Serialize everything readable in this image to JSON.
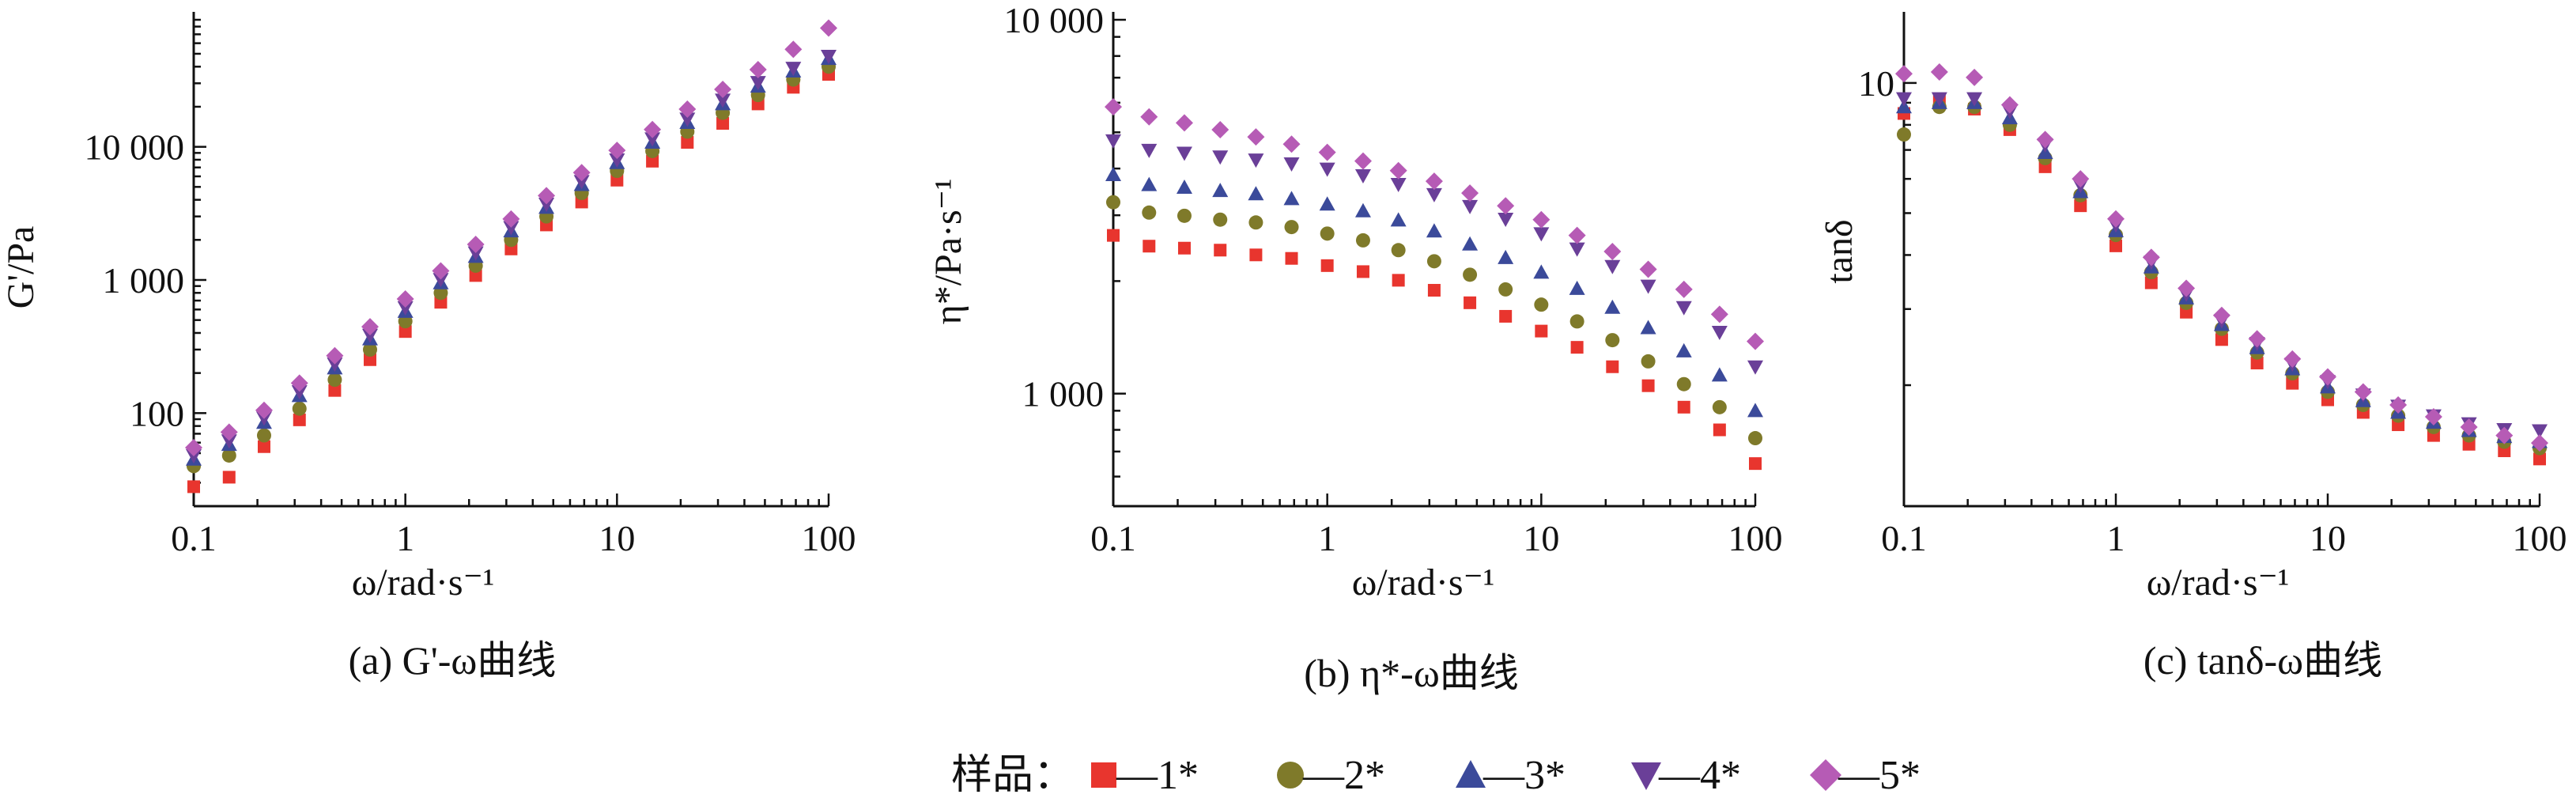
{
  "legend": {
    "title": "样品：",
    "items": [
      {
        "label": "—1*",
        "color": "#e8352e",
        "marker": "square"
      },
      {
        "label": "—2*",
        "color": "#7f7a2a",
        "marker": "circle"
      },
      {
        "label": "—3*",
        "color": "#3b4a9a",
        "marker": "triangle-up"
      },
      {
        "label": "—4*",
        "color": "#6a3f98",
        "marker": "triangle-down"
      },
      {
        "label": "—5*",
        "color": "#b65bb5",
        "marker": "diamond"
      }
    ]
  },
  "chart_data": [
    {
      "type": "scatter",
      "caption": "(a) G'-ω曲线",
      "xlabel": "ω/rad·s⁻¹",
      "ylabel": "G'/Pa",
      "xscale": "log",
      "yscale": "log",
      "xlim": [
        0.1,
        100
      ],
      "ylim": [
        20,
        90000
      ],
      "xticks": [
        {
          "v": 0.1,
          "label": "0.1"
        },
        {
          "v": 1,
          "label": "1"
        },
        {
          "v": 10,
          "label": "10"
        },
        {
          "v": 100,
          "label": "100"
        }
      ],
      "yticks": [
        {
          "v": 100,
          "label": "100"
        },
        {
          "v": 1000,
          "label": "1 000"
        },
        {
          "v": 10000,
          "label": "10 000"
        }
      ],
      "x": [
        0.1,
        0.147,
        0.215,
        0.316,
        0.464,
        0.681,
        1,
        1.47,
        2.15,
        3.16,
        4.64,
        6.81,
        10,
        14.7,
        21.5,
        31.6,
        46.4,
        68.1,
        100
      ],
      "series": [
        {
          "values": [
            28,
            33,
            56,
            89,
            148,
            252,
            410,
            680,
            1080,
            1710,
            2590,
            3850,
            5620,
            7800,
            10800,
            15000,
            21000,
            28000,
            35000
          ]
        },
        {
          "values": [
            40,
            48,
            68,
            108,
            178,
            300,
            490,
            800,
            1280,
            2000,
            3000,
            4500,
            6600,
            9300,
            13000,
            18000,
            24500,
            32000,
            40000
          ]
        },
        {
          "values": [
            45,
            58,
            85,
            135,
            218,
            360,
            580,
            950,
            1500,
            2330,
            3500,
            5200,
            7600,
            10800,
            15200,
            21000,
            28500,
            37000,
            46000
          ]
        },
        {
          "values": [
            48,
            62,
            92,
            145,
            234,
            385,
            620,
            1010,
            1600,
            2480,
            3720,
            5500,
            8000,
            11500,
            16200,
            22500,
            30500,
            39000,
            48000
          ]
        },
        {
          "values": [
            55,
            72,
            105,
            168,
            270,
            445,
            720,
            1170,
            1850,
            2870,
            4300,
            6400,
            9400,
            13500,
            19200,
            27000,
            38000,
            54000,
            78000
          ]
        }
      ]
    },
    {
      "type": "scatter",
      "caption": "(b) η*-ω曲线",
      "xlabel": "ω/rad·s⁻¹",
      "ylabel": "η*/Pa·s⁻¹",
      "xscale": "log",
      "yscale": "log",
      "xlim": [
        0.1,
        100
      ],
      "ylim": [
        500,
        10000
      ],
      "xticks": [
        {
          "v": 0.1,
          "label": "0.1"
        },
        {
          "v": 1,
          "label": "1"
        },
        {
          "v": 10,
          "label": "10"
        },
        {
          "v": 100,
          "label": "100"
        }
      ],
      "yticks": [
        {
          "v": 1000,
          "label": "1 000"
        },
        {
          "v": 10000,
          "label": "10 000"
        }
      ],
      "x": [
        0.1,
        0.147,
        0.215,
        0.316,
        0.464,
        0.681,
        1,
        1.47,
        2.15,
        3.16,
        4.64,
        6.81,
        10,
        14.7,
        21.5,
        31.6,
        46.4,
        68.1,
        100
      ],
      "series": [
        {
          "values": [
            2650,
            2480,
            2450,
            2420,
            2350,
            2300,
            2200,
            2120,
            2010,
            1890,
            1750,
            1610,
            1470,
            1330,
            1180,
            1050,
            920,
            800,
            650
          ]
        },
        {
          "values": [
            3250,
            3050,
            2990,
            2920,
            2870,
            2790,
            2680,
            2570,
            2420,
            2260,
            2080,
            1900,
            1730,
            1560,
            1390,
            1220,
            1060,
            920,
            760
          ]
        },
        {
          "values": [
            3850,
            3620,
            3560,
            3490,
            3420,
            3320,
            3210,
            3080,
            2910,
            2720,
            2510,
            2310,
            2110,
            1910,
            1700,
            1500,
            1300,
            1120,
            900
          ]
        },
        {
          "values": [
            4750,
            4480,
            4400,
            4300,
            4220,
            4120,
            3990,
            3830,
            3630,
            3410,
            3170,
            2930,
            2680,
            2440,
            2190,
            1940,
            1700,
            1460,
            1180
          ]
        },
        {
          "values": [
            5850,
            5500,
            5300,
            5080,
            4860,
            4650,
            4420,
            4190,
            3950,
            3700,
            3440,
            3180,
            2920,
            2650,
            2400,
            2150,
            1900,
            1630,
            1380
          ]
        }
      ]
    },
    {
      "type": "scatter",
      "caption": "(c) tanδ-ω曲线",
      "xlabel": "ω/rad·s⁻¹",
      "ylabel": "tanδ",
      "xscale": "log",
      "yscale": "log",
      "xlim": [
        0.1,
        100
      ],
      "ylim": [
        1.05,
        14
      ],
      "xticks": [
        {
          "v": 0.1,
          "label": "0.1"
        },
        {
          "v": 1,
          "label": "1"
        },
        {
          "v": 10,
          "label": "10"
        },
        {
          "v": 100,
          "label": "100"
        }
      ],
      "yticks": [
        {
          "v": 10,
          "label": "10"
        }
      ],
      "x": [
        0.1,
        0.147,
        0.215,
        0.316,
        0.464,
        0.681,
        1,
        1.47,
        2.15,
        3.16,
        4.64,
        6.81,
        10,
        14.7,
        21.5,
        31.6,
        46.4,
        68.1,
        100
      ],
      "series": [
        {
          "values": [
            8.5,
            9.1,
            8.7,
            7.8,
            6.4,
            5.2,
            4.2,
            3.45,
            2.95,
            2.55,
            2.25,
            2.02,
            1.85,
            1.73,
            1.62,
            1.53,
            1.46,
            1.41,
            1.35
          ]
        },
        {
          "values": [
            7.6,
            8.8,
            8.8,
            8.0,
            6.7,
            5.5,
            4.45,
            3.65,
            3.1,
            2.7,
            2.38,
            2.13,
            1.93,
            1.8,
            1.7,
            1.6,
            1.53,
            1.48,
            1.43
          ]
        },
        {
          "values": [
            8.8,
            9.0,
            9.0,
            8.3,
            6.9,
            5.6,
            4.55,
            3.75,
            3.18,
            2.76,
            2.44,
            2.18,
            1.98,
            1.84,
            1.73,
            1.64,
            1.57,
            1.52,
            1.48
          ]
        },
        {
          "values": [
            9.2,
            9.2,
            9.2,
            8.6,
            7.2,
            5.8,
            4.7,
            3.85,
            3.25,
            2.82,
            2.5,
            2.24,
            2.04,
            1.9,
            1.79,
            1.7,
            1.63,
            1.58,
            1.57
          ]
        },
        {
          "values": [
            10.5,
            10.6,
            10.3,
            8.9,
            7.4,
            6.0,
            4.85,
            3.95,
            3.35,
            2.9,
            2.56,
            2.3,
            2.09,
            1.93,
            1.8,
            1.69,
            1.6,
            1.53,
            1.47
          ]
        }
      ]
    }
  ]
}
